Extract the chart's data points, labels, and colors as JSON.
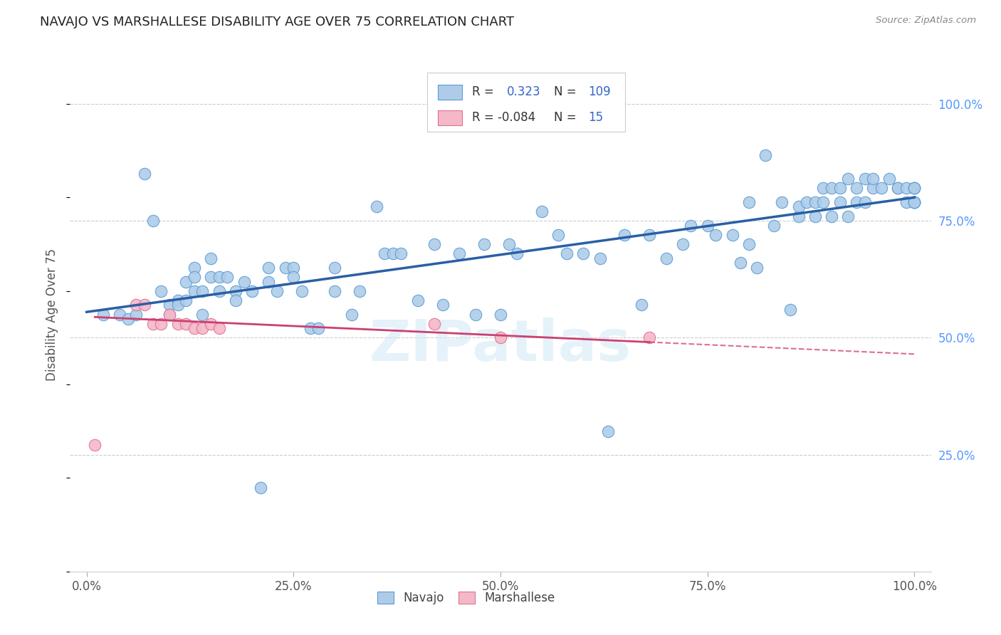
{
  "title": "NAVAJO VS MARSHALLESE DISABILITY AGE OVER 75 CORRELATION CHART",
  "source": "Source: ZipAtlas.com",
  "ylabel": "Disability Age Over 75",
  "ytick_labels": [
    "25.0%",
    "50.0%",
    "75.0%",
    "100.0%"
  ],
  "ytick_values": [
    0.25,
    0.5,
    0.75,
    1.0
  ],
  "xlim": [
    -0.02,
    1.02
  ],
  "ylim": [
    0.0,
    1.1
  ],
  "navajo_R": 0.323,
  "navajo_N": 109,
  "marshallese_R": -0.084,
  "marshallese_N": 15,
  "navajo_color": "#aecce8",
  "navajo_edge_color": "#5b9bd5",
  "navajo_line_color": "#2a5fa5",
  "marshallese_color": "#f4b8c8",
  "marshallese_edge_color": "#e07090",
  "marshallese_line_color": "#cc4070",
  "background_color": "#ffffff",
  "watermark": "ZIPatlas",
  "navajo_x": [
    0.02,
    0.04,
    0.05,
    0.06,
    0.07,
    0.08,
    0.09,
    0.1,
    0.1,
    0.11,
    0.11,
    0.12,
    0.12,
    0.13,
    0.13,
    0.13,
    0.14,
    0.14,
    0.15,
    0.15,
    0.16,
    0.16,
    0.17,
    0.18,
    0.18,
    0.19,
    0.2,
    0.21,
    0.22,
    0.22,
    0.23,
    0.24,
    0.25,
    0.25,
    0.26,
    0.27,
    0.28,
    0.3,
    0.3,
    0.32,
    0.33,
    0.35,
    0.36,
    0.37,
    0.38,
    0.4,
    0.42,
    0.43,
    0.45,
    0.47,
    0.48,
    0.5,
    0.51,
    0.52,
    0.55,
    0.57,
    0.58,
    0.6,
    0.62,
    0.63,
    0.65,
    0.67,
    0.68,
    0.7,
    0.72,
    0.73,
    0.75,
    0.76,
    0.78,
    0.79,
    0.8,
    0.8,
    0.81,
    0.82,
    0.83,
    0.84,
    0.85,
    0.86,
    0.86,
    0.87,
    0.88,
    0.88,
    0.89,
    0.89,
    0.9,
    0.9,
    0.91,
    0.91,
    0.92,
    0.92,
    0.93,
    0.93,
    0.94,
    0.94,
    0.95,
    0.95,
    0.96,
    0.97,
    0.98,
    0.98,
    0.99,
    0.99,
    1.0,
    1.0,
    1.0,
    1.0,
    1.0,
    1.0,
    1.0
  ],
  "navajo_y": [
    0.55,
    0.55,
    0.54,
    0.55,
    0.85,
    0.75,
    0.6,
    0.57,
    0.55,
    0.58,
    0.57,
    0.62,
    0.58,
    0.65,
    0.63,
    0.6,
    0.6,
    0.55,
    0.67,
    0.63,
    0.63,
    0.6,
    0.63,
    0.6,
    0.58,
    0.62,
    0.6,
    0.18,
    0.65,
    0.62,
    0.6,
    0.65,
    0.65,
    0.63,
    0.6,
    0.52,
    0.52,
    0.65,
    0.6,
    0.55,
    0.6,
    0.78,
    0.68,
    0.68,
    0.68,
    0.58,
    0.7,
    0.57,
    0.68,
    0.55,
    0.7,
    0.55,
    0.7,
    0.68,
    0.77,
    0.72,
    0.68,
    0.68,
    0.67,
    0.3,
    0.72,
    0.57,
    0.72,
    0.67,
    0.7,
    0.74,
    0.74,
    0.72,
    0.72,
    0.66,
    0.79,
    0.7,
    0.65,
    0.89,
    0.74,
    0.79,
    0.56,
    0.76,
    0.78,
    0.79,
    0.79,
    0.76,
    0.79,
    0.82,
    0.82,
    0.76,
    0.79,
    0.82,
    0.84,
    0.76,
    0.82,
    0.79,
    0.84,
    0.79,
    0.82,
    0.84,
    0.82,
    0.84,
    0.82,
    0.82,
    0.82,
    0.79,
    0.82,
    0.79,
    0.82,
    0.79,
    0.82,
    0.79,
    0.79
  ],
  "marshallese_x": [
    0.01,
    0.06,
    0.07,
    0.08,
    0.09,
    0.1,
    0.11,
    0.12,
    0.13,
    0.14,
    0.15,
    0.16,
    0.42,
    0.5,
    0.68
  ],
  "marshallese_y": [
    0.27,
    0.57,
    0.57,
    0.53,
    0.53,
    0.55,
    0.53,
    0.53,
    0.52,
    0.52,
    0.53,
    0.52,
    0.53,
    0.5,
    0.5
  ],
  "navajo_line_x0": 0.0,
  "navajo_line_x1": 1.0,
  "navajo_line_y0": 0.555,
  "navajo_line_y1": 0.8,
  "marsh_line_x0": 0.0,
  "marsh_line_x1": 1.0,
  "marsh_line_y0": 0.545,
  "marsh_line_y1": 0.465
}
